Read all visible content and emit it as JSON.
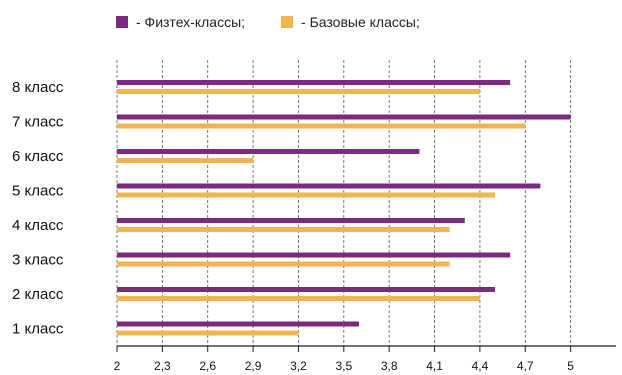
{
  "chart_data": {
    "type": "bar",
    "orientation": "horizontal",
    "categories": [
      "8 класс",
      "7 класс",
      "6 класс",
      "5 класс",
      "4 класс",
      "3 класс",
      "2 класс",
      "1 класс"
    ],
    "series": [
      {
        "name": "- Физтех-классы;",
        "color": "#7b2a80",
        "values": [
          4.6,
          5.0,
          4.0,
          4.8,
          4.3,
          4.6,
          4.5,
          3.6
        ]
      },
      {
        "name": "- Базовые классы;",
        "color": "#f0b450",
        "values": [
          4.4,
          4.7,
          2.9,
          4.5,
          4.2,
          4.2,
          4.4,
          3.2
        ]
      }
    ],
    "xticks": [
      "2",
      "2,3",
      "2,6",
      "2,9",
      "3,2",
      "3,5",
      "3,8",
      "4,1",
      "4,4",
      "4,7",
      "5"
    ],
    "xlim": [
      2,
      5.3
    ],
    "grid": true,
    "legend": "top"
  }
}
